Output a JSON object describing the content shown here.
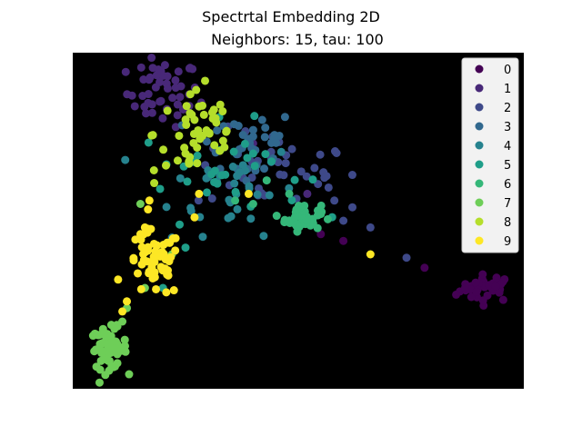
{
  "chart_data": {
    "type": "scatter",
    "title": "Spectrtal Embedding 2D",
    "subtitle": "Neighbors: 15, tau: 100",
    "axes_background": "#000000",
    "axis_ticks": "hidden",
    "xlim": [
      0,
      100
    ],
    "ylim": [
      0,
      100
    ],
    "legend": {
      "placement": "top-right",
      "entries": [
        "0",
        "1",
        "2",
        "3",
        "4",
        "5",
        "6",
        "7",
        "8",
        "9"
      ]
    },
    "colors": [
      "#440154",
      "#482878",
      "#3e4989",
      "#31688e",
      "#26828e",
      "#1f9e89",
      "#35b779",
      "#6ece58",
      "#b5de2b",
      "#fde725"
    ],
    "clusters": [
      {
        "label": "0",
        "center": [
          92,
          30
        ],
        "spread": [
          3,
          2
        ],
        "count": 35,
        "extra": [
          [
            60,
            44
          ],
          [
            55,
            46
          ],
          [
            87,
            30
          ],
          [
            85,
            28
          ],
          [
            78,
            36
          ]
        ]
      },
      {
        "label": "1",
        "center": [
          20,
          88
        ],
        "spread": [
          4,
          5
        ],
        "count": 45,
        "extra": [
          [
            19,
            95
          ],
          [
            21,
            93
          ],
          [
            40,
            73
          ],
          [
            52,
            58
          ],
          [
            24,
            90
          ],
          [
            28,
            84
          ]
        ]
      },
      {
        "label": "2",
        "center": [
          45,
          65
        ],
        "spread": [
          9,
          6
        ],
        "count": 40,
        "extra": [
          [
            58,
            56
          ],
          [
            62,
            54
          ],
          [
            66,
            48
          ],
          [
            60,
            50
          ],
          [
            74,
            39
          ]
        ]
      },
      {
        "label": "3",
        "center": [
          38,
          72
        ],
        "spread": [
          6,
          6
        ],
        "count": 35,
        "extra": [
          [
            42,
            80
          ],
          [
            40,
            77
          ],
          [
            30,
            63
          ]
        ]
      },
      {
        "label": "4",
        "center": [
          36,
          60
        ],
        "spread": [
          7,
          7
        ],
        "count": 30,
        "extra": [
          [
            22,
            45
          ],
          [
            30,
            65
          ]
        ]
      },
      {
        "label": "5",
        "center": [
          33,
          65
        ],
        "spread": [
          9,
          7
        ],
        "count": 30,
        "extra": [
          [
            20,
            30
          ],
          [
            25,
            42
          ],
          [
            40,
            70
          ]
        ]
      },
      {
        "label": "6",
        "center": [
          51,
          51
        ],
        "spread": [
          2,
          2
        ],
        "count": 45,
        "extra": [
          [
            40,
            55
          ],
          [
            43,
            62
          ],
          [
            48,
            58
          ],
          [
            36,
            56
          ],
          [
            55,
            52
          ]
        ]
      },
      {
        "label": "7",
        "center": [
          8,
          12
        ],
        "spread": [
          2,
          3
        ],
        "count": 60,
        "extra": [
          [
            12,
            24
          ],
          [
            16,
            30
          ],
          [
            15,
            55
          ],
          [
            22,
            40
          ],
          [
            11,
            20
          ]
        ]
      },
      {
        "label": "8",
        "center": [
          28,
          76
        ],
        "spread": [
          5,
          8
        ],
        "count": 45,
        "extra": [
          [
            26,
            82
          ],
          [
            28,
            84
          ],
          [
            27,
            80
          ],
          [
            18,
            65
          ],
          [
            25,
            70
          ]
        ]
      },
      {
        "label": "9",
        "center": [
          18,
          37
        ],
        "spread": [
          3,
          5
        ],
        "count": 55,
        "extra": [
          [
            15,
            46
          ],
          [
            16,
            48
          ],
          [
            12,
            26
          ],
          [
            11,
            23
          ],
          [
            39,
            58
          ],
          [
            66,
            40
          ],
          [
            27,
            51
          ],
          [
            28,
            58
          ],
          [
            17,
            56
          ]
        ]
      }
    ]
  }
}
